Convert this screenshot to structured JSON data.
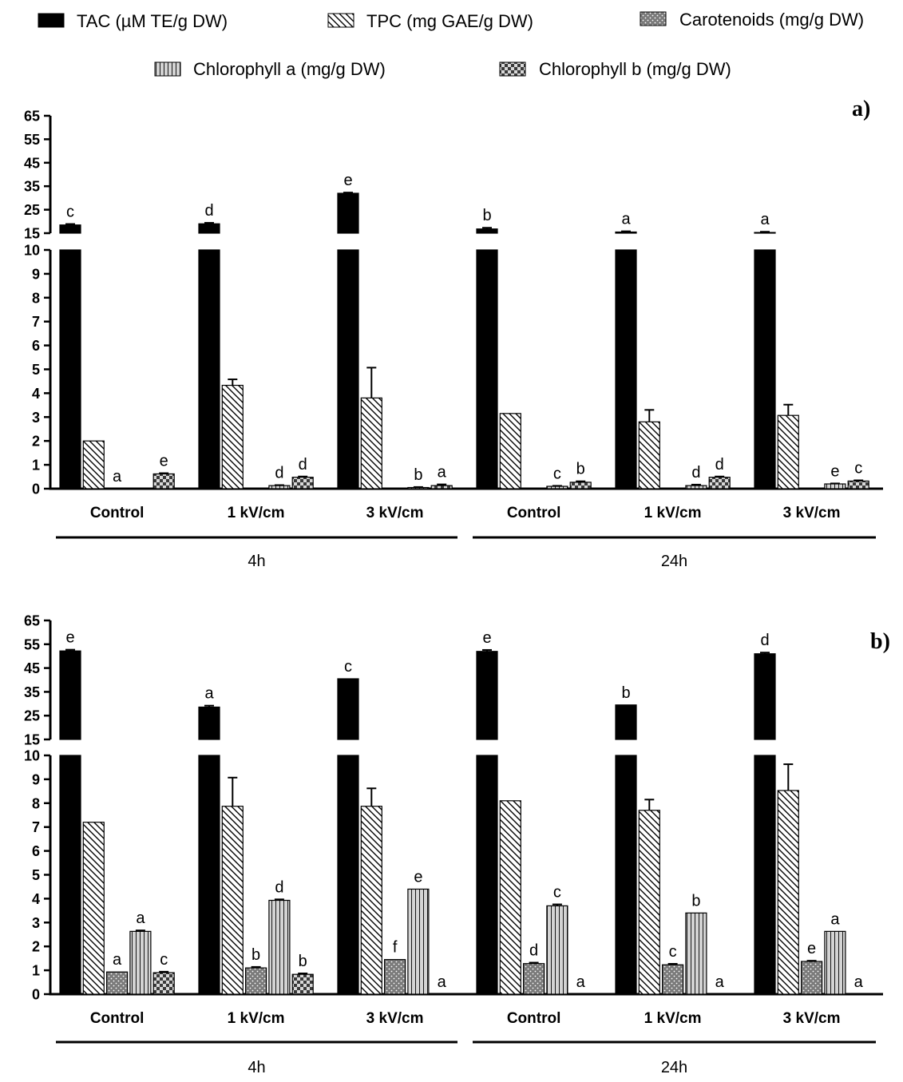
{
  "chart_data": [
    {
      "type": "bar",
      "title": "a)",
      "categories": [
        "Control",
        "1 kV/cm",
        "3 kV/cm",
        "Control",
        "1 kV/cm",
        "3 kV/cm"
      ],
      "groups": [
        {
          "label": "4h",
          "categories": [
            0,
            1,
            2
          ]
        },
        {
          "label": "24h",
          "categories": [
            3,
            4,
            5
          ]
        }
      ],
      "y_axis": {
        "lower": {
          "range": [
            0,
            10
          ],
          "ticks": [
            "0",
            "1",
            "2",
            "3",
            "4",
            "5",
            "6",
            "7",
            "8",
            "9",
            "10"
          ]
        },
        "upper": {
          "range": [
            15,
            65
          ],
          "ticks": [
            "15",
            "25",
            "35",
            "45",
            "55",
            "65"
          ]
        }
      },
      "series": [
        {
          "name": "TAC (µM TE/g DW)",
          "values": [
            18.5,
            19.0,
            32.0,
            16.8,
            15.5,
            15.3
          ],
          "errors": [
            0.4,
            0.4,
            0.3,
            0.5,
            0.3,
            0.3
          ],
          "letters": [
            "c",
            "d",
            "e",
            "b",
            "a",
            "a"
          ]
        },
        {
          "name": "TPC (mg GAE/g DW)",
          "values": [
            2.0,
            4.33,
            3.8,
            3.15,
            2.8,
            3.07
          ],
          "errors": [
            0,
            0.25,
            1.27,
            0,
            0.5,
            0.45
          ],
          "letters": [
            "",
            "",
            "",
            "",
            "",
            ""
          ]
        },
        {
          "name": "Carotenoids (mg/g DW)",
          "values": [
            0,
            0,
            0,
            0,
            0,
            0
          ],
          "errors": [
            0,
            0,
            0,
            0,
            0,
            0
          ],
          "letters": [
            "a",
            "",
            "",
            "",
            "",
            ""
          ]
        },
        {
          "name": "Chlorophyll a (mg/g DW)",
          "values": [
            0,
            0.13,
            0.05,
            0.1,
            0.13,
            0.2
          ],
          "errors": [
            0,
            0.02,
            0.02,
            0.02,
            0.04,
            0.02
          ],
          "letters": [
            "",
            "d",
            "b",
            "c",
            "d",
            "e"
          ]
        },
        {
          "name": "Chlorophyll b (mg/g DW)",
          "values": [
            0.62,
            0.48,
            0.13,
            0.27,
            0.48,
            0.32
          ],
          "errors": [
            0.03,
            0.03,
            0.05,
            0.04,
            0.03,
            0.03
          ],
          "letters": [
            "e",
            "d",
            "a",
            "b",
            "d",
            "c"
          ]
        }
      ]
    },
    {
      "type": "bar",
      "title": "b)",
      "categories": [
        "Control",
        "1 kV/cm",
        "3 kV/cm",
        "Control",
        "1 kV/cm",
        "3 kV/cm"
      ],
      "groups": [
        {
          "label": "4h",
          "categories": [
            0,
            1,
            2
          ]
        },
        {
          "label": "24h",
          "categories": [
            3,
            4,
            5
          ]
        }
      ],
      "y_axis": {
        "lower": {
          "range": [
            0,
            10
          ],
          "ticks": [
            "0",
            "1",
            "2",
            "3",
            "4",
            "5",
            "6",
            "7",
            "8",
            "9",
            "10"
          ]
        },
        "upper": {
          "range": [
            15,
            65
          ],
          "ticks": [
            "15",
            "25",
            "35",
            "45",
            "55",
            "65"
          ]
        }
      },
      "series": [
        {
          "name": "TAC (µM TE/g DW)",
          "values": [
            52.2,
            28.6,
            40.5,
            52.0,
            29.5,
            51.0
          ],
          "errors": [
            0.5,
            0.6,
            0,
            0.6,
            0,
            0.5
          ],
          "letters": [
            "e",
            "a",
            "c",
            "e",
            "b",
            "d"
          ]
        },
        {
          "name": "TPC (mg GAE/g DW)",
          "values": [
            7.2,
            7.87,
            7.87,
            8.1,
            7.7,
            8.53
          ],
          "errors": [
            0,
            1.2,
            0.75,
            0,
            0.45,
            1.1
          ],
          "letters": [
            "",
            "",
            "",
            "",
            "",
            ""
          ]
        },
        {
          "name": "Carotenoids (mg/g DW)",
          "values": [
            0.93,
            1.1,
            1.45,
            1.28,
            1.23,
            1.37
          ],
          "errors": [
            0,
            0.04,
            0,
            0.04,
            0.04,
            0.03
          ],
          "letters": [
            "a",
            "b",
            "f",
            "d",
            "c",
            "e"
          ]
        },
        {
          "name": "Chlorophyll a (mg/g DW)",
          "values": [
            2.63,
            3.93,
            4.4,
            3.7,
            3.4,
            2.63
          ],
          "errors": [
            0.04,
            0.04,
            0,
            0.06,
            0,
            0
          ],
          "letters": [
            "a",
            "d",
            "e",
            "c",
            "b",
            "a"
          ]
        },
        {
          "name": "Chlorophyll b (mg/g DW)",
          "values": [
            0.9,
            0.83,
            0,
            0,
            0,
            0
          ],
          "errors": [
            0.04,
            0.04,
            0,
            0,
            0,
            0
          ],
          "letters": [
            "c",
            "b",
            "a",
            "a",
            "a",
            "a"
          ]
        }
      ]
    }
  ]
}
